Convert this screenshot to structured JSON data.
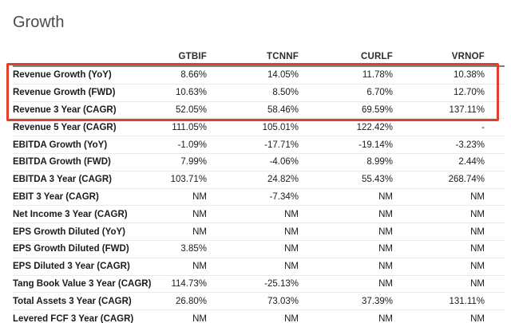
{
  "page": {
    "title": "Growth"
  },
  "table": {
    "metric_column_header": "",
    "columns": [
      "GTBIF",
      "TCNNF",
      "CURLF",
      "VRNOF"
    ],
    "rows": [
      {
        "label": "Revenue Growth (YoY)",
        "values": [
          "8.66%",
          "14.05%",
          "11.78%",
          "10.38%"
        ]
      },
      {
        "label": "Revenue Growth (FWD)",
        "values": [
          "10.63%",
          "8.50%",
          "6.70%",
          "12.70%"
        ]
      },
      {
        "label": "Revenue 3 Year (CAGR)",
        "values": [
          "52.05%",
          "58.46%",
          "69.59%",
          "137.11%"
        ]
      },
      {
        "label": "Revenue 5 Year (CAGR)",
        "values": [
          "111.05%",
          "105.01%",
          "122.42%",
          "-"
        ]
      },
      {
        "label": "EBITDA Growth (YoY)",
        "values": [
          "-1.09%",
          "-17.71%",
          "-19.14%",
          "-3.23%"
        ]
      },
      {
        "label": "EBITDA Growth (FWD)",
        "values": [
          "7.99%",
          "-4.06%",
          "8.99%",
          "2.44%"
        ]
      },
      {
        "label": "EBITDA 3 Year (CAGR)",
        "values": [
          "103.71%",
          "24.82%",
          "55.43%",
          "268.74%"
        ]
      },
      {
        "label": "EBIT 3 Year (CAGR)",
        "values": [
          "NM",
          "-7.34%",
          "NM",
          "NM"
        ]
      },
      {
        "label": "Net Income 3 Year (CAGR)",
        "values": [
          "NM",
          "NM",
          "NM",
          "NM"
        ]
      },
      {
        "label": "EPS Growth Diluted (YoY)",
        "values": [
          "NM",
          "NM",
          "NM",
          "NM"
        ]
      },
      {
        "label": "EPS Growth Diluted (FWD)",
        "values": [
          "3.85%",
          "NM",
          "NM",
          "NM"
        ]
      },
      {
        "label": "EPS Diluted 3 Year (CAGR)",
        "values": [
          "NM",
          "NM",
          "NM",
          "NM"
        ]
      },
      {
        "label": "Tang Book Value 3 Year (CAGR)",
        "values": [
          "114.73%",
          "-25.13%",
          "NM",
          "NM"
        ]
      },
      {
        "label": "Total Assets 3 Year (CAGR)",
        "values": [
          "26.80%",
          "73.03%",
          "37.39%",
          "131.11%"
        ]
      },
      {
        "label": "Levered FCF 3 Year (CAGR)",
        "values": [
          "NM",
          "NM",
          "NM",
          "NM"
        ]
      }
    ],
    "annotation": {
      "type": "highlight-box",
      "color": "#e23e28",
      "highlighted_row_labels": [
        "Revenue Growth (YoY)",
        "Revenue Growth (FWD)",
        "Revenue 3 Year (CAGR)"
      ]
    }
  }
}
